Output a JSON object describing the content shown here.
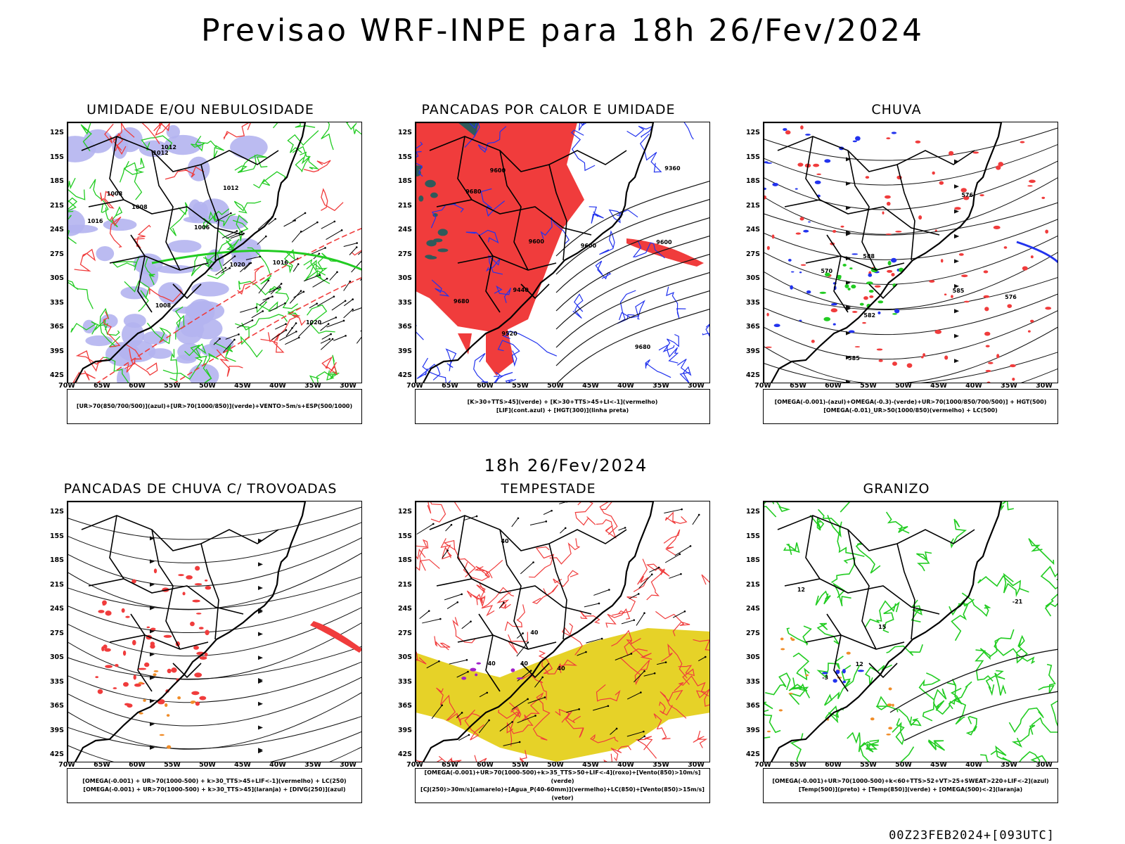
{
  "title": "Previsao WRF-INPE  para 18h 26/Fev/2024",
  "mid_title": "18h 26/Fev/2024",
  "footer": "00Z23FEB2024+[093UTC]",
  "lat_labels": [
    "12S",
    "15S",
    "18S",
    "21S",
    "24S",
    "27S",
    "30S",
    "33S",
    "36S",
    "39S",
    "42S"
  ],
  "lon_labels": [
    "70W",
    "65W",
    "60W",
    "55W",
    "50W",
    "45W",
    "40W",
    "35W",
    "30W"
  ],
  "colors": {
    "red": "#f03c3c",
    "green": "#22cc22",
    "blue": "#2233ee",
    "lavender": "#b4b4f0",
    "orange": "#f08c28",
    "yellow": "#e6d228",
    "purple": "#a020c8",
    "darkteal": "#2f5a5a"
  },
  "panels": [
    {
      "id": "umidade",
      "title": "UMIDADE E/OU NEBULOSIDADE",
      "legend": [
        "[UR>70(850/700/500)](azul)+[UR>70(1000/850)](verde)+VENTO>5m/s+ESP(500/1000)"
      ],
      "contour_labels": [
        "1008",
        "1008",
        "1006",
        "1012",
        "1008",
        "1012",
        "1016",
        "1020",
        "1020",
        "1016",
        "1012"
      ]
    },
    {
      "id": "pancadas-calor",
      "title": "PANCADAS POR CALOR E UMIDADE",
      "legend": [
        "[K>30+TTS>45](verde) + [K>30+TTS>45+LI<-1](vermelho)",
        "[LIF](cont.azul) + [HGT(300)](linha preta)"
      ],
      "contour_labels": [
        "9600",
        "9600",
        "9600",
        "9680",
        "9680",
        "9680",
        "9600",
        "9520",
        "9440",
        "9360"
      ]
    },
    {
      "id": "chuva",
      "title": "CHUVA",
      "legend": [
        "[OMEGA(-0.001)-(azul)+OMEGA(-0.3)-(verde)+UR>70(1000/850/700/500)] + HGT(500)",
        "[OMEGA(-0.01)_UR>50(1000/850)(vermelho) + LC(500)"
      ],
      "contour_labels": [
        "585",
        "585",
        "588",
        "582",
        "576",
        "576",
        "570"
      ]
    },
    {
      "id": "pancadas-trovoadas",
      "title": "PANCADAS DE CHUVA C/ TROVOADAS",
      "legend": [
        "[OMEGA(-0.001) + UR>70(1000-500) + k>30_TTS>45+LIF<-1](vermelho) + LC(250)",
        "[OMEGA(-0.001) + UR>70(1000-500) + k>30_TTS>45](laranja) + [DIVG(250)](azul)"
      ],
      "contour_labels": []
    },
    {
      "id": "tempestade",
      "title": "TEMPESTADE",
      "legend": [
        "[OMEGA(-0.001)+UR>70(1000-500)+k>35_TTS>50+LIF<-4](roxo)+[Vento(850)>10m/s](verde)",
        "[CJ(250)>30m/s](amarelo)+[Agua_P(40-60mm)](vermelho)+LC(850)+[Vento(850)>15m/s](vetor)"
      ],
      "contour_labels": [
        "40",
        "40",
        "40",
        "40",
        "40"
      ]
    },
    {
      "id": "granizo",
      "title": "GRANIZO",
      "legend": [
        "[OMEGA(-0.001)+UR>70(1000-500)+k<60+TTS>52+VT>25+SWEAT>220+LIF<-2](azul)",
        "[Temp(500)](preto) + [Temp(850)](verde) + [OMEGA(500)<-2](laranja)"
      ],
      "contour_labels": [
        "15",
        "12",
        "-3",
        "-21",
        "12"
      ]
    }
  ]
}
